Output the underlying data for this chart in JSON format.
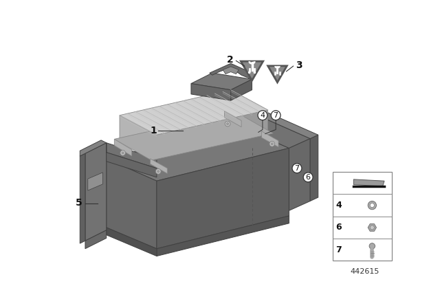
{
  "diagram_number": "442615",
  "background_color": "#ffffff",
  "gray_tray_top": "#7a7a7a",
  "gray_tray_left": "#6a6a6a",
  "gray_tray_front": "#606060",
  "gray_module_top": "#c8c8c8",
  "gray_module_left": "#b0b0b0",
  "gray_module_right": "#a0a0a0",
  "gray_module_bottom": "#a8a8a8",
  "gray_bracket": "#7a7a7a",
  "gray_bracket_dark": "#606060",
  "gray_connector": "#8a8a8a",
  "outline": "#404040",
  "tri_fill": "#888888",
  "tri_outline": "#555555",
  "label_color": "#111111",
  "circle_label_color": "#111111",
  "panel_border": "#aaaaaa",
  "part7_bolt_color": "#aaaaaa",
  "part6_nut_color": "#aaaaaa",
  "part4_washer_color": "#aaaaaa",
  "part_shim_color": "#999999"
}
